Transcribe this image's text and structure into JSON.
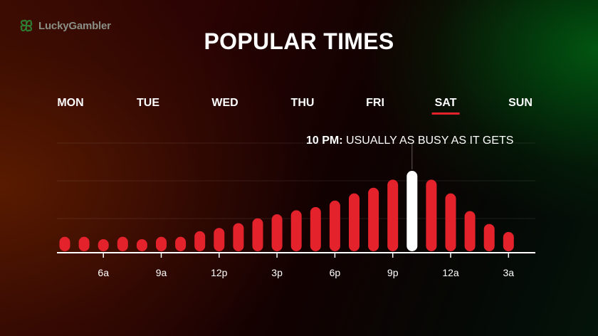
{
  "brand": {
    "name": "LuckyGambler",
    "icon": "clover-icon"
  },
  "title": "POPULAR TIMES",
  "days": [
    "MON",
    "TUE",
    "WED",
    "THU",
    "FRI",
    "SAT",
    "SUN"
  ],
  "active_day": "SAT",
  "annotation": {
    "time": "10 PM:",
    "text": "USUALLY AS BUSY AS IT GETS"
  },
  "colors": {
    "bar": "#e3222b",
    "highlight": "#ffffff",
    "accent": "#e3222b"
  },
  "chart_data": {
    "type": "bar",
    "title": "POPULAR TIMES",
    "categories": [
      "4a",
      "5a",
      "6a",
      "7a",
      "8a",
      "9a",
      "10a",
      "11a",
      "12p",
      "1p",
      "2p",
      "3p",
      "4p",
      "5p",
      "6p",
      "7p",
      "8p",
      "9p",
      "10p",
      "11p",
      "12a",
      "1a",
      "2a",
      "3a"
    ],
    "values": [
      18,
      18,
      15,
      18,
      15,
      18,
      18,
      25,
      29,
      35,
      41,
      46,
      51,
      55,
      63,
      72,
      79,
      89,
      100,
      89,
      72,
      50,
      34,
      24
    ],
    "highlight_category": "10p",
    "x_tick_labels": [
      "6a",
      "9a",
      "12p",
      "3p",
      "6p",
      "9p",
      "12a",
      "3a"
    ],
    "ylim": [
      0,
      100
    ],
    "grid": true,
    "legend": "none"
  }
}
